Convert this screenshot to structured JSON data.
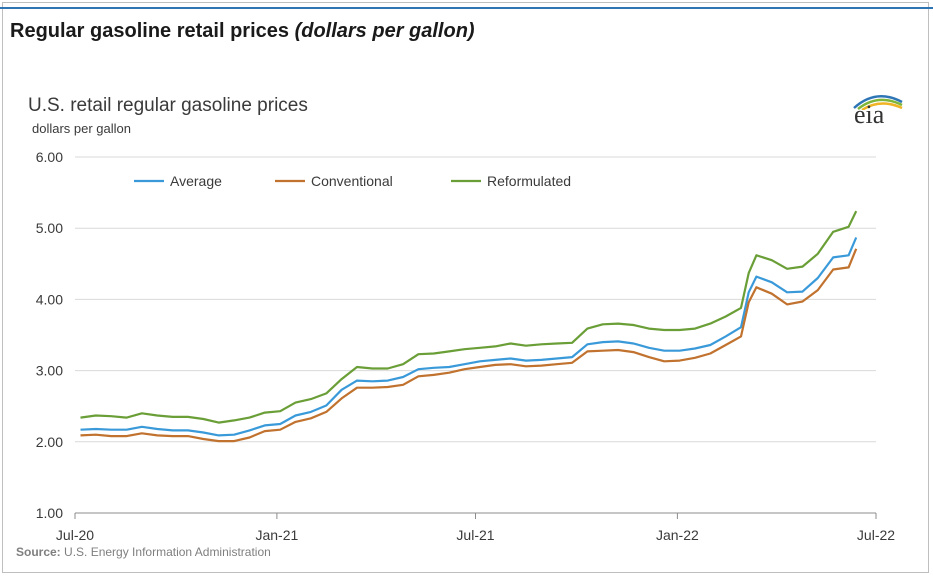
{
  "header": {
    "title": "Regular gasoline retail prices",
    "title_italic": "(dollars per gallon)"
  },
  "logo": {
    "text": "eia",
    "colors": [
      "#2e75b6",
      "#7fb539",
      "#f0b323"
    ]
  },
  "source": {
    "label": "Source:",
    "text": "U.S. Energy Information Administration"
  },
  "chart_data": {
    "type": "line",
    "title": "U.S. retail regular gasoline prices",
    "ylabel": "dollars per gallon",
    "ylim": [
      1.0,
      6.0
    ],
    "yticks": [
      "1.00",
      "2.00",
      "3.00",
      "4.00",
      "5.00",
      "6.00"
    ],
    "xlim": [
      "2020-07-01",
      "2022-07-01"
    ],
    "xticks": [
      {
        "date": "2020-07-01",
        "label": "Jul-20"
      },
      {
        "date": "2021-01-01",
        "label": "Jan-21"
      },
      {
        "date": "2021-07-01",
        "label": "Jul-21"
      },
      {
        "date": "2022-01-01",
        "label": "Jan-22"
      },
      {
        "date": "2022-07-01",
        "label": "Jul-22"
      }
    ],
    "grid": "horizontal",
    "legend": "top-left",
    "x": [
      "2020-07-06",
      "2020-07-20",
      "2020-08-03",
      "2020-08-17",
      "2020-08-31",
      "2020-09-14",
      "2020-09-28",
      "2020-10-12",
      "2020-10-26",
      "2020-11-09",
      "2020-11-23",
      "2020-12-07",
      "2020-12-21",
      "2021-01-04",
      "2021-01-18",
      "2021-02-01",
      "2021-02-15",
      "2021-03-01",
      "2021-03-15",
      "2021-03-29",
      "2021-04-12",
      "2021-04-26",
      "2021-05-10",
      "2021-05-24",
      "2021-06-07",
      "2021-06-21",
      "2021-07-05",
      "2021-07-19",
      "2021-08-02",
      "2021-08-16",
      "2021-08-30",
      "2021-09-13",
      "2021-09-27",
      "2021-10-11",
      "2021-10-25",
      "2021-11-08",
      "2021-11-22",
      "2021-12-06",
      "2021-12-20",
      "2022-01-03",
      "2022-01-17",
      "2022-01-31",
      "2022-02-14",
      "2022-02-28",
      "2022-03-07",
      "2022-03-14",
      "2022-03-28",
      "2022-04-11",
      "2022-04-25",
      "2022-05-09",
      "2022-05-23",
      "2022-06-06",
      "2022-06-13"
    ],
    "series": [
      {
        "name": "Average",
        "color": "#3a9ad9",
        "values": [
          2.17,
          2.18,
          2.17,
          2.17,
          2.21,
          2.18,
          2.16,
          2.16,
          2.13,
          2.09,
          2.1,
          2.16,
          2.23,
          2.25,
          2.37,
          2.42,
          2.51,
          2.73,
          2.86,
          2.85,
          2.86,
          2.91,
          3.02,
          3.04,
          3.05,
          3.09,
          3.13,
          3.15,
          3.17,
          3.14,
          3.15,
          3.17,
          3.19,
          3.37,
          3.4,
          3.41,
          3.38,
          3.32,
          3.28,
          3.28,
          3.31,
          3.36,
          3.48,
          3.61,
          4.1,
          4.32,
          4.24,
          4.1,
          4.11,
          4.3,
          4.59,
          4.62,
          4.87
        ]
      },
      {
        "name": "Conventional",
        "color": "#c0722e",
        "values": [
          2.09,
          2.1,
          2.08,
          2.08,
          2.12,
          2.09,
          2.08,
          2.08,
          2.04,
          2.01,
          2.01,
          2.06,
          2.15,
          2.17,
          2.28,
          2.33,
          2.42,
          2.61,
          2.76,
          2.76,
          2.77,
          2.8,
          2.92,
          2.94,
          2.97,
          3.02,
          3.05,
          3.08,
          3.09,
          3.06,
          3.07,
          3.09,
          3.11,
          3.27,
          3.28,
          3.29,
          3.26,
          3.19,
          3.13,
          3.14,
          3.18,
          3.24,
          3.36,
          3.48,
          3.96,
          4.17,
          4.08,
          3.93,
          3.97,
          4.13,
          4.42,
          4.45,
          4.71
        ]
      },
      {
        "name": "Reformulated",
        "color": "#6a9e37",
        "values": [
          2.34,
          2.37,
          2.36,
          2.34,
          2.4,
          2.37,
          2.35,
          2.35,
          2.32,
          2.27,
          2.3,
          2.34,
          2.41,
          2.43,
          2.55,
          2.6,
          2.68,
          2.88,
          3.05,
          3.03,
          3.03,
          3.09,
          3.23,
          3.24,
          3.27,
          3.3,
          3.32,
          3.34,
          3.38,
          3.35,
          3.37,
          3.38,
          3.39,
          3.59,
          3.65,
          3.66,
          3.64,
          3.59,
          3.57,
          3.57,
          3.59,
          3.66,
          3.76,
          3.88,
          4.37,
          4.62,
          4.55,
          4.43,
          4.46,
          4.64,
          4.95,
          5.02,
          5.24
        ]
      }
    ]
  }
}
